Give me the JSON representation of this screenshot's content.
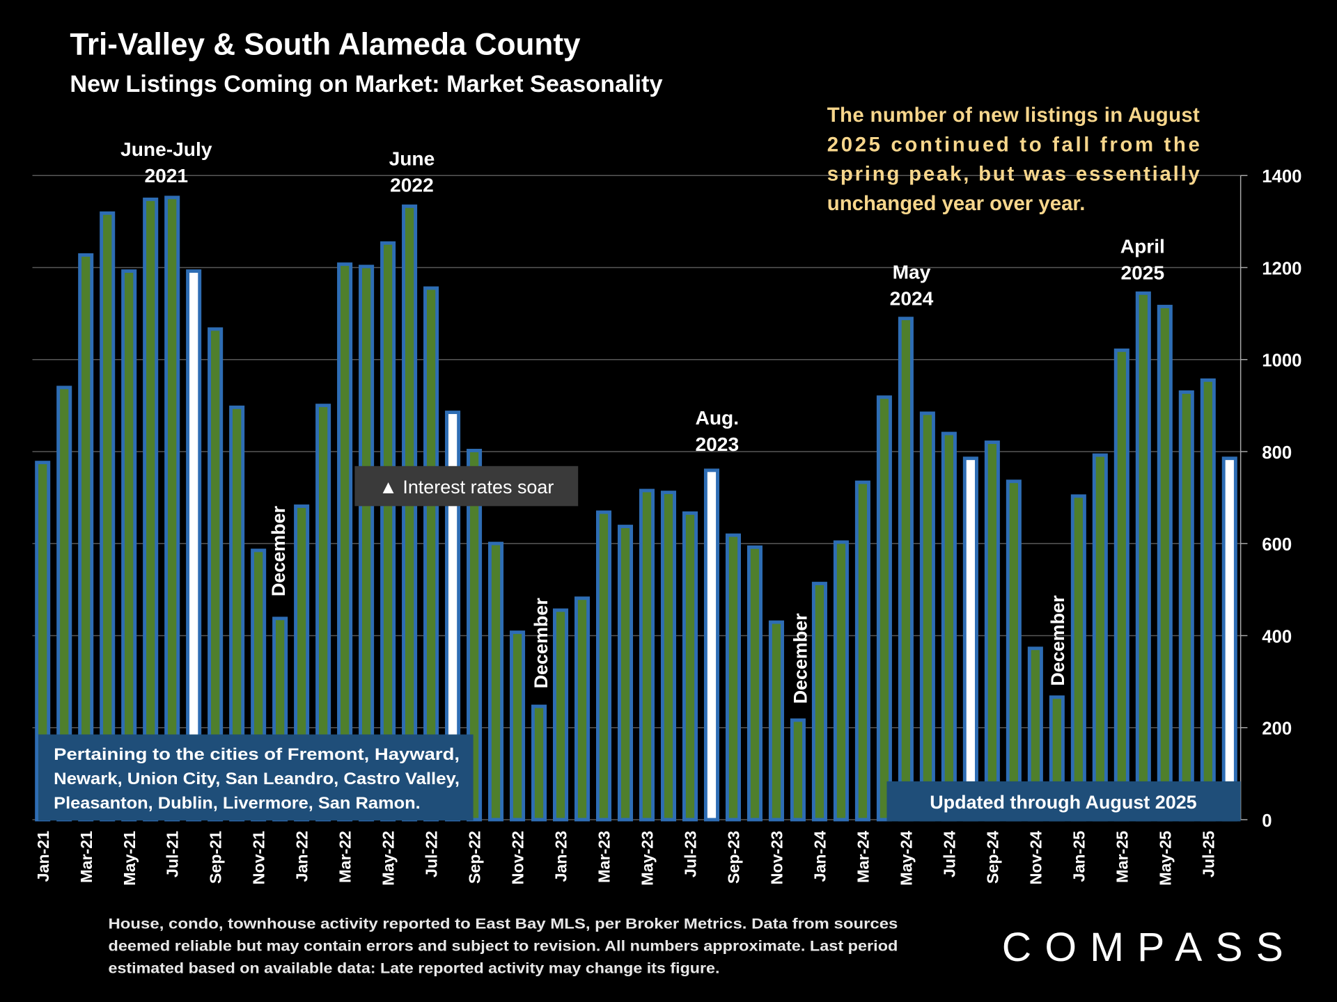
{
  "chart_data": {
    "type": "bar",
    "title": "Tri-Valley & South Alameda County",
    "subtitle": "New Listings Coming on Market: Market Seasonality",
    "categories": [
      "Jan-21",
      null,
      "Mar-21",
      null,
      "May-21",
      null,
      "Jul-21",
      null,
      "Sep-21",
      null,
      "Nov-21",
      null,
      "Jan-22",
      null,
      "Mar-22",
      null,
      "May-22",
      null,
      "Jul-22",
      null,
      "Sep-22",
      null,
      "Nov-22",
      null,
      "Jan-23",
      null,
      "Mar-23",
      null,
      "May-23",
      null,
      "Jul-23",
      null,
      "Sep-23",
      null,
      "Nov-23",
      null,
      "Jan-24",
      null,
      "Mar-24",
      null,
      "May-24",
      null,
      "Jul-24",
      null,
      "Sep-24",
      null,
      "Nov-24",
      null,
      "Jan-25",
      null,
      "Mar-25",
      null,
      "May-25",
      null,
      "Jul-25",
      null
    ],
    "values": [
      780,
      943,
      1231,
      1322,
      1196,
      1352,
      1356,
      1196,
      1070,
      900,
      589,
      441,
      685,
      904,
      1211,
      1206,
      1257,
      1337,
      1159,
      889,
      806,
      604,
      411,
      250,
      459,
      485,
      672,
      641,
      719,
      715,
      670,
      763,
      622,
      596,
      433,
      220,
      517,
      607,
      737,
      922,
      1093,
      887,
      843,
      789,
      824,
      739,
      376,
      270,
      707,
      796,
      1024,
      1148,
      1119,
      933,
      959,
      789
    ],
    "colors": [
      "#4f7f2c",
      "#4f7f2c",
      "#4f7f2c",
      "#4f7f2c",
      "#4f7f2c",
      "#4f7f2c",
      "#4f7f2c",
      "#ffffff",
      "#4f7f2c",
      "#4f7f2c",
      "#4f7f2c",
      "#4f7f2c",
      "#4f7f2c",
      "#4f7f2c",
      "#4f7f2c",
      "#4f7f2c",
      "#4f7f2c",
      "#4f7f2c",
      "#4f7f2c",
      "#ffffff",
      "#4f7f2c",
      "#4f7f2c",
      "#4f7f2c",
      "#4f7f2c",
      "#4f7f2c",
      "#4f7f2c",
      "#4f7f2c",
      "#4f7f2c",
      "#4f7f2c",
      "#4f7f2c",
      "#4f7f2c",
      "#ffffff",
      "#4f7f2c",
      "#4f7f2c",
      "#4f7f2c",
      "#4f7f2c",
      "#4f7f2c",
      "#4f7f2c",
      "#4f7f2c",
      "#4f7f2c",
      "#4f7f2c",
      "#4f7f2c",
      "#4f7f2c",
      "#ffffff",
      "#4f7f2c",
      "#4f7f2c",
      "#4f7f2c",
      "#4f7f2c",
      "#4f7f2c",
      "#4f7f2c",
      "#4f7f2c",
      "#4f7f2c",
      "#4f7f2c",
      "#4f7f2c",
      "#4f7f2c",
      "#ffffff"
    ],
    "edge_color": "#2e6db4",
    "ylim": [
      0,
      1400
    ],
    "yticks": [
      0,
      200,
      400,
      600,
      800,
      1000,
      1200,
      1400
    ],
    "grid": true,
    "annotations": [
      {
        "lines": [
          "June-July",
          "2021"
        ]
      },
      {
        "lines": [
          "June",
          "2022"
        ]
      },
      {
        "lines": [
          "Aug.",
          "2023"
        ]
      },
      {
        "lines": [
          "May",
          "2024"
        ]
      },
      {
        "lines": [
          "April",
          "2025"
        ]
      },
      {
        "text": "December"
      },
      {
        "text": "December"
      },
      {
        "text": "December"
      },
      {
        "text": "December"
      }
    ],
    "event_label": "▲ Interest rates soar",
    "commentary": [
      "The number of new listings in August",
      "2025 continued to fall from the",
      "spring peak, but was essentially",
      "unchanged year over year."
    ],
    "coverage_note": [
      "Pertaining to the cities of Fremont, Hayward,",
      "Newark, Union City, San Leandro, Castro Valley,",
      "Pleasanton, Dublin, Livermore, San Ramon."
    ],
    "updated_note": "Updated through August 2025",
    "footnote": [
      "House, condo, townhouse activity reported to East Bay MLS, per Broker Metrics. Data from sources",
      "deemed reliable but may contain errors and subject to revision. All numbers approximate. Last period",
      "estimated based on available data: Late reported activity may change its figure."
    ],
    "brand": "COMPASS"
  }
}
